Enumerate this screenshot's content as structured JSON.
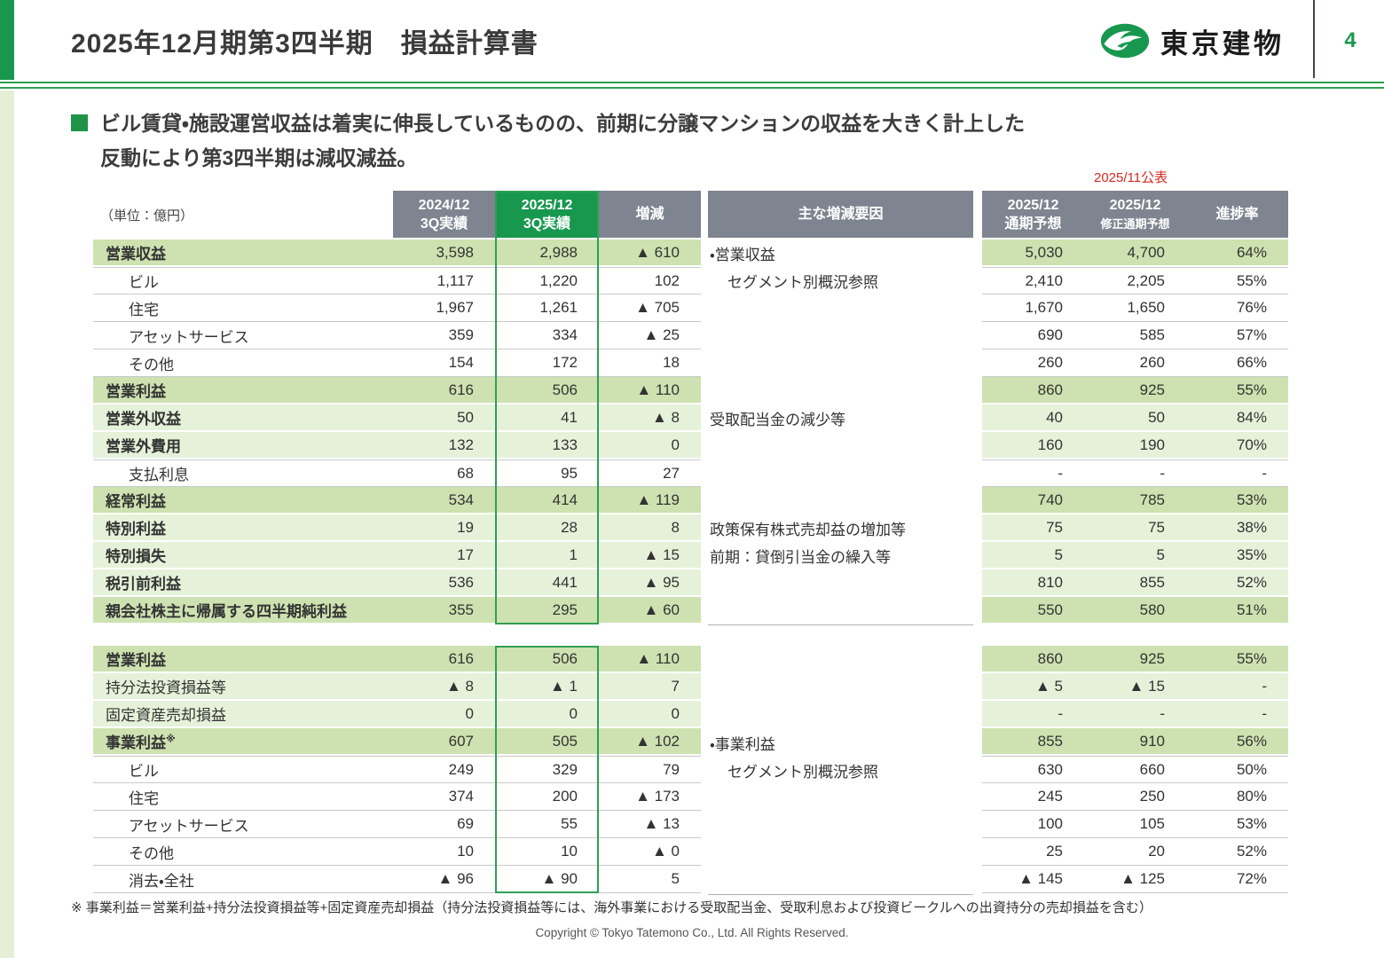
{
  "header": {
    "title": "2025年12月期第3四半期　損益計算書",
    "logo_text": "東京建物",
    "page_number": "4"
  },
  "lead": {
    "bullet_line1": "ビル賃貸・施設運営収益は着実に伸長しているものの、前期に分譲マンションの収益を大きく計上した",
    "bullet_line2": "反動により第3四半期は減収減益。",
    "unit_note": "（単位：億円）",
    "announce_note": "2025/11公表"
  },
  "columns": {
    "actual_prev": [
      "2024/12",
      "3Q実績"
    ],
    "actual_curr": [
      "2025/12",
      "3Q実績"
    ],
    "change": "増減",
    "factors": "主な増減要因",
    "forecast": [
      "2025/12",
      "通期予想"
    ],
    "forecast_rev": [
      "2025/12",
      "修正通期予想"
    ],
    "progress": "進捗率"
  },
  "colors": {
    "brand_green": "#17984e",
    "row_green": "#cde2b0",
    "row_light_green": "#e6f1da",
    "header_gray": "#7e8490",
    "announce_red": "#d5281e"
  },
  "table1": {
    "rows": [
      {
        "label": "営業収益",
        "style": "g",
        "bold": true,
        "indent": false,
        "values": [
          "3,598",
          "2,988",
          "▲ 610"
        ],
        "factor": "・営業収益",
        "factor_indent": false,
        "forecast": [
          "5,030",
          "4,700",
          "64%"
        ]
      },
      {
        "label": "ビル",
        "style": "w",
        "bold": false,
        "indent": true,
        "values": [
          "1,117",
          "1,220",
          "102"
        ],
        "factor": "セグメント別概況参照",
        "factor_indent": true,
        "forecast": [
          "2,410",
          "2,205",
          "55%"
        ]
      },
      {
        "label": "住宅",
        "style": "w",
        "bold": false,
        "indent": true,
        "values": [
          "1,967",
          "1,261",
          "▲ 705"
        ],
        "factor": "",
        "factor_indent": false,
        "forecast": [
          "1,670",
          "1,650",
          "76%"
        ]
      },
      {
        "label": "アセットサービス",
        "style": "w",
        "bold": false,
        "indent": true,
        "values": [
          "359",
          "334",
          "▲ 25"
        ],
        "factor": "",
        "factor_indent": false,
        "forecast": [
          "690",
          "585",
          "57%"
        ]
      },
      {
        "label": "その他",
        "style": "w",
        "bold": false,
        "indent": true,
        "values": [
          "154",
          "172",
          "18"
        ],
        "factor": "",
        "factor_indent": false,
        "forecast": [
          "260",
          "260",
          "66%"
        ]
      },
      {
        "label": "営業利益",
        "style": "g",
        "bold": true,
        "indent": false,
        "values": [
          "616",
          "506",
          "▲ 110"
        ],
        "factor": "",
        "factor_indent": false,
        "forecast": [
          "860",
          "925",
          "55%"
        ]
      },
      {
        "label": "営業外収益",
        "style": "l",
        "bold": true,
        "indent": false,
        "values": [
          "50",
          "41",
          "▲ 8"
        ],
        "factor": "受取配当金の減少等",
        "factor_indent": false,
        "forecast": [
          "40",
          "50",
          "84%"
        ]
      },
      {
        "label": "営業外費用",
        "style": "l",
        "bold": true,
        "indent": false,
        "values": [
          "132",
          "133",
          "0"
        ],
        "factor": "",
        "factor_indent": false,
        "forecast": [
          "160",
          "190",
          "70%"
        ]
      },
      {
        "label": "支払利息",
        "style": "w",
        "bold": false,
        "indent": true,
        "values": [
          "68",
          "95",
          "27"
        ],
        "factor": "",
        "factor_indent": false,
        "forecast": [
          "-",
          "-",
          "-"
        ]
      },
      {
        "label": "経常利益",
        "style": "g",
        "bold": true,
        "indent": false,
        "values": [
          "534",
          "414",
          "▲ 119"
        ],
        "factor": "",
        "factor_indent": false,
        "forecast": [
          "740",
          "785",
          "53%"
        ]
      },
      {
        "label": "特別利益",
        "style": "l",
        "bold": true,
        "indent": false,
        "values": [
          "19",
          "28",
          "8"
        ],
        "factor": "政策保有株式売却益の増加等",
        "factor_indent": false,
        "forecast": [
          "75",
          "75",
          "38%"
        ]
      },
      {
        "label": "特別損失",
        "style": "l",
        "bold": true,
        "indent": false,
        "values": [
          "17",
          "1",
          "▲ 15"
        ],
        "factor": "前期：貸倒引当金の繰入等",
        "factor_indent": false,
        "forecast": [
          "5",
          "5",
          "35%"
        ]
      },
      {
        "label": "税引前利益",
        "style": "l",
        "bold": true,
        "indent": false,
        "values": [
          "536",
          "441",
          "▲ 95"
        ],
        "factor": "",
        "factor_indent": false,
        "forecast": [
          "810",
          "855",
          "52%"
        ]
      },
      {
        "label": "親会社株主に帰属する四半期純利益",
        "style": "g",
        "bold": true,
        "indent": false,
        "values": [
          "355",
          "295",
          "▲ 60"
        ],
        "factor": "",
        "factor_indent": false,
        "forecast": [
          "550",
          "580",
          "51%"
        ]
      }
    ]
  },
  "table2": {
    "rows": [
      {
        "label": "営業利益",
        "style": "g",
        "bold": true,
        "indent": false,
        "values": [
          "616",
          "506",
          "▲ 110"
        ],
        "factor": "",
        "factor_indent": false,
        "forecast": [
          "860",
          "925",
          "55%"
        ]
      },
      {
        "label": "持分法投資損益等",
        "style": "l",
        "bold": false,
        "indent": false,
        "values": [
          "▲ 8",
          "▲ 1",
          "7"
        ],
        "factor": "",
        "factor_indent": false,
        "forecast": [
          "▲ 5",
          "▲ 15",
          "-"
        ]
      },
      {
        "label": "固定資産売却損益",
        "style": "l",
        "bold": false,
        "indent": false,
        "values": [
          "0",
          "0",
          "0"
        ],
        "factor": "",
        "factor_indent": false,
        "forecast": [
          "-",
          "-",
          "-"
        ]
      },
      {
        "label": "事業利益",
        "sup": "※",
        "style": "g",
        "bold": true,
        "indent": false,
        "values": [
          "607",
          "505",
          "▲ 102"
        ],
        "factor": "・事業利益",
        "factor_indent": false,
        "forecast": [
          "855",
          "910",
          "56%"
        ]
      },
      {
        "label": "ビル",
        "style": "w",
        "bold": false,
        "indent": true,
        "values": [
          "249",
          "329",
          "79"
        ],
        "factor": "セグメント別概況参照",
        "factor_indent": true,
        "forecast": [
          "630",
          "660",
          "50%"
        ]
      },
      {
        "label": "住宅",
        "style": "w",
        "bold": false,
        "indent": true,
        "values": [
          "374",
          "200",
          "▲ 173"
        ],
        "factor": "",
        "factor_indent": false,
        "forecast": [
          "245",
          "250",
          "80%"
        ]
      },
      {
        "label": "アセットサービス",
        "style": "w",
        "bold": false,
        "indent": true,
        "values": [
          "69",
          "55",
          "▲ 13"
        ],
        "factor": "",
        "factor_indent": false,
        "forecast": [
          "100",
          "105",
          "53%"
        ]
      },
      {
        "label": "その他",
        "style": "w",
        "bold": false,
        "indent": true,
        "values": [
          "10",
          "10",
          "▲ 0"
        ],
        "factor": "",
        "factor_indent": false,
        "forecast": [
          "25",
          "20",
          "52%"
        ]
      },
      {
        "label": "消去・全社",
        "style": "w",
        "bold": false,
        "indent": true,
        "values": [
          "▲ 96",
          "▲ 90",
          "5"
        ],
        "factor": "",
        "factor_indent": false,
        "forecast": [
          "▲ 145",
          "▲ 125",
          "72%"
        ]
      }
    ]
  },
  "footnote": "※ 事業利益＝営業利益+持分法投資損益等+固定資産売却損益（持分法投資損益等には、海外事業における受取配当金、受取利息および投資ビークルへの出資持分の売却損益を含む）",
  "copyright": "Copyright © Tokyo Tatemono Co., Ltd. All Rights Reserved."
}
